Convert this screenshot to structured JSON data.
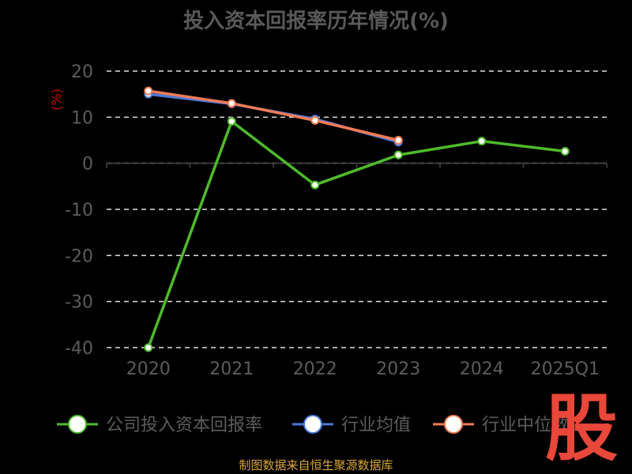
{
  "title": "投入资本回报率历年情况(%)",
  "source": "制图数据来自恒生聚源数据库",
  "logo_text": "股",
  "colors": {
    "background": "#000000",
    "grid": "#e0e0e0",
    "axis_text": "#5c5c5c",
    "ylabel": "#cc0000",
    "title": "#5a5a5a",
    "source": "#d9a63a",
    "logo": "#e8473a"
  },
  "chart_data": {
    "type": "line",
    "ylabel": "(%)",
    "ylim": [
      -40,
      20
    ],
    "yticks": [
      20,
      10,
      0,
      -10,
      -20,
      -30,
      -40
    ],
    "grid": true,
    "legend_position": "bottom",
    "categories": [
      "2020",
      "2021",
      "2022",
      "2023",
      "2024",
      "2025Q1"
    ],
    "series": [
      {
        "name": "公司投入资本回报率",
        "color": "#4fba2b",
        "values": [
          -40.0,
          9.1,
          -4.7,
          1.8,
          4.8,
          2.6
        ]
      },
      {
        "name": "行业均值",
        "color": "#4a78d8",
        "values": [
          15.0,
          12.9,
          9.6,
          4.6,
          null,
          null
        ]
      },
      {
        "name": "行业中位数",
        "color": "#f07b56",
        "values": [
          15.7,
          13.0,
          9.3,
          5.0,
          null,
          null
        ]
      }
    ]
  }
}
